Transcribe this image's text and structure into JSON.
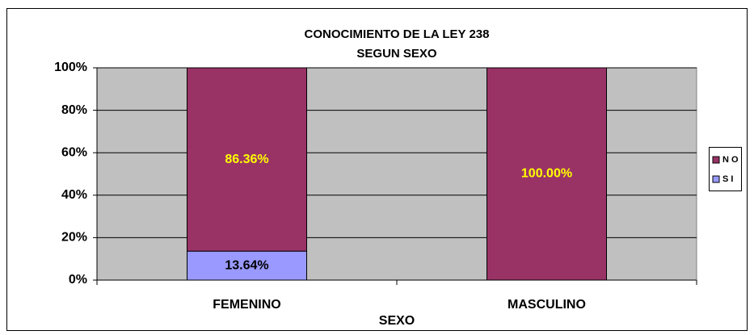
{
  "chart_data": {
    "type": "stacked_bar",
    "title": "CONOCIMIENTO DE LA LEY 238",
    "subtitle": "SEGUN SEXO",
    "x_label": "SEXO",
    "categories": [
      "FEMENINO",
      "MASCULINO"
    ],
    "series": [
      {
        "name": "SI",
        "color": "#9999ff",
        "label_color": "#000000",
        "values": [
          13.64,
          0
        ],
        "value_labels": [
          "13.64%",
          null
        ]
      },
      {
        "name": "NO",
        "color": "#993366",
        "label_color": "#ffff00",
        "values": [
          86.36,
          100
        ],
        "value_labels": [
          "86.36%",
          "100.00%"
        ]
      }
    ],
    "ylim": [
      0,
      100
    ],
    "yticks": [
      {
        "value": 0,
        "label": "0%"
      },
      {
        "value": 20,
        "label": "20%"
      },
      {
        "value": 40,
        "label": "40%"
      },
      {
        "value": 60,
        "label": "60%"
      },
      {
        "value": 80,
        "label": "80%"
      },
      {
        "value": 100,
        "label": "100%"
      }
    ],
    "grid": true,
    "legend": "right"
  }
}
